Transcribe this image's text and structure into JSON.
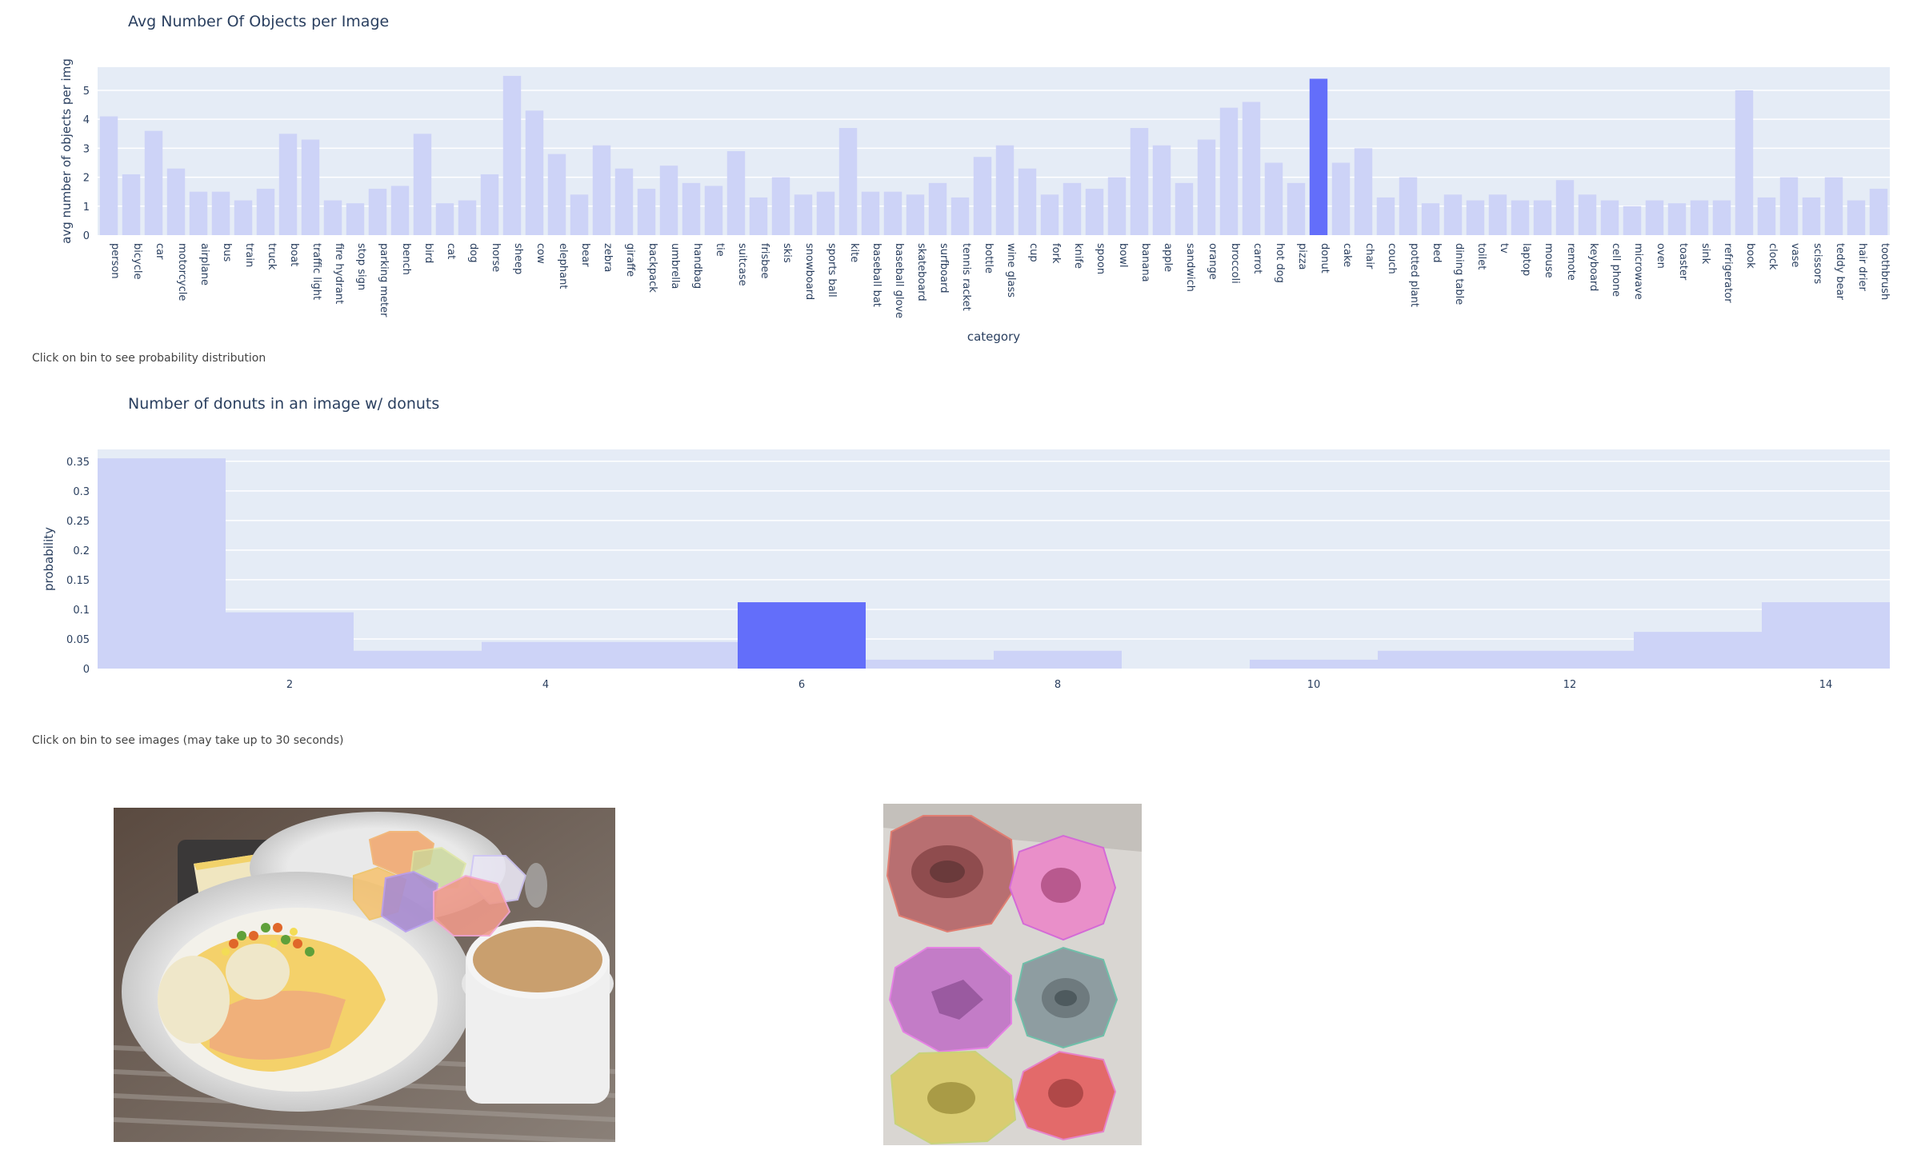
{
  "chart_data": [
    {
      "type": "bar",
      "title": "Avg Number Of Objects per Image",
      "xlabel": "category",
      "ylabel": "avg number of objects per img",
      "ylim": [
        0,
        5.8
      ],
      "yticks": [
        0,
        1,
        2,
        3,
        4,
        5
      ],
      "highlighted": "donut",
      "categories": [
        "person",
        "bicycle",
        "car",
        "motorcycle",
        "airplane",
        "bus",
        "train",
        "truck",
        "boat",
        "traffic light",
        "fire hydrant",
        "stop sign",
        "parking meter",
        "bench",
        "bird",
        "cat",
        "dog",
        "horse",
        "sheep",
        "cow",
        "elephant",
        "bear",
        "zebra",
        "giraffe",
        "backpack",
        "umbrella",
        "handbag",
        "tie",
        "suitcase",
        "frisbee",
        "skis",
        "snowboard",
        "sports ball",
        "kite",
        "baseball bat",
        "baseball glove",
        "skateboard",
        "surfboard",
        "tennis racket",
        "bottle",
        "wine glass",
        "cup",
        "fork",
        "knife",
        "spoon",
        "bowl",
        "banana",
        "apple",
        "sandwich",
        "orange",
        "broccoli",
        "carrot",
        "hot dog",
        "pizza",
        "donut",
        "cake",
        "chair",
        "couch",
        "potted plant",
        "bed",
        "dining table",
        "toilet",
        "tv",
        "laptop",
        "mouse",
        "remote",
        "keyboard",
        "cell phone",
        "microwave",
        "oven",
        "toaster",
        "sink",
        "refrigerator",
        "book",
        "clock",
        "vase",
        "scissors",
        "teddy bear",
        "hair drier",
        "toothbrush"
      ],
      "values": [
        4.1,
        2.1,
        3.6,
        2.3,
        1.5,
        1.5,
        1.2,
        1.6,
        3.5,
        3.3,
        1.2,
        1.1,
        1.6,
        1.7,
        3.5,
        1.1,
        1.2,
        2.1,
        5.5,
        4.3,
        2.8,
        1.4,
        3.1,
        2.3,
        1.6,
        2.4,
        1.8,
        1.7,
        2.9,
        1.3,
        2.0,
        1.4,
        1.5,
        3.7,
        1.5,
        1.5,
        1.4,
        1.8,
        1.3,
        2.7,
        3.1,
        2.3,
        1.4,
        1.8,
        1.6,
        2.0,
        3.7,
        3.1,
        1.8,
        3.3,
        4.4,
        4.6,
        2.5,
        1.8,
        5.4,
        2.5,
        3.0,
        1.3,
        2.0,
        1.1,
        1.4,
        1.2,
        1.4,
        1.2,
        1.2,
        1.9,
        1.4,
        1.2,
        1.0,
        1.2,
        1.1,
        1.2,
        1.2,
        5.0,
        1.3,
        2.0,
        1.3,
        2.0,
        1.2,
        1.6
      ]
    },
    {
      "type": "bar",
      "title": "Number of donuts in an image w/ donuts",
      "xlabel": "",
      "ylabel": "probability",
      "xlim": [
        0.5,
        14.5
      ],
      "ylim": [
        0,
        0.37
      ],
      "xticks": [
        2,
        4,
        6,
        8,
        10,
        12,
        14
      ],
      "yticks": [
        0,
        0.05,
        0.1,
        0.15,
        0.2,
        0.25,
        0.3,
        0.35
      ],
      "highlighted": 6,
      "x": [
        1,
        2,
        3,
        4,
        5,
        6,
        7,
        8,
        9,
        10,
        11,
        12,
        13,
        14
      ],
      "values": [
        0.355,
        0.095,
        0.03,
        0.045,
        0.045,
        0.112,
        0.015,
        0.03,
        0,
        0.015,
        0.03,
        0.03,
        0.062,
        0.112
      ]
    }
  ],
  "notes": {
    "click_distribution": "Click on bin to see probability distribution",
    "click_images": "Click on bin to see images (may take up to 30 seconds)"
  },
  "colors": {
    "bar_default": "#cdd3f7",
    "bar_highlight": "#636efa",
    "plot_bg": "#e5ecf6",
    "text": "#2a3f5f"
  }
}
